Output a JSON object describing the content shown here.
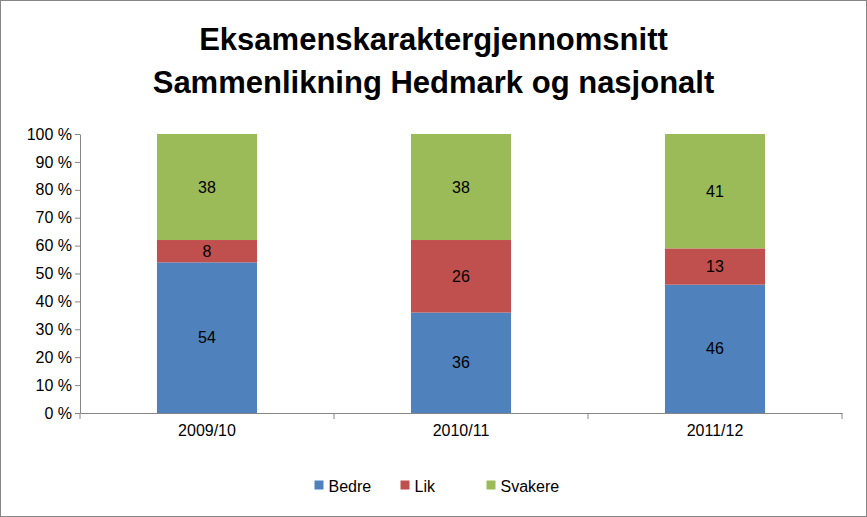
{
  "chart_data": {
    "type": "bar",
    "stacked": true,
    "title": "Eksamenskaraktergjennomsnitt\nSammenlikning Hedmark og nasjonalt",
    "categories": [
      "2009/10",
      "2010/11",
      "2011/12"
    ],
    "series": [
      {
        "name": "Bedre",
        "color": "#4f81bd",
        "values": [
          54,
          36,
          46
        ]
      },
      {
        "name": "Lik",
        "color": "#c0504d",
        "values": [
          8,
          26,
          13
        ]
      },
      {
        "name": "Svakere",
        "color": "#9bbb59",
        "values": [
          38,
          38,
          41
        ]
      }
    ],
    "ylim": [
      0,
      100
    ],
    "yticks": [
      {
        "value": 0,
        "label": "0 %"
      },
      {
        "value": 10,
        "label": "10 %"
      },
      {
        "value": 20,
        "label": "20 %"
      },
      {
        "value": 30,
        "label": "30 %"
      },
      {
        "value": 40,
        "label": "40 %"
      },
      {
        "value": 50,
        "label": "50 %"
      },
      {
        "value": 60,
        "label": "60 %"
      },
      {
        "value": 70,
        "label": "70 %"
      },
      {
        "value": 80,
        "label": "80 %"
      },
      {
        "value": 90,
        "label": "90 %"
      },
      {
        "value": 100,
        "label": "100 %"
      }
    ],
    "grid": false,
    "data_labels": true,
    "legend": "bottom"
  }
}
